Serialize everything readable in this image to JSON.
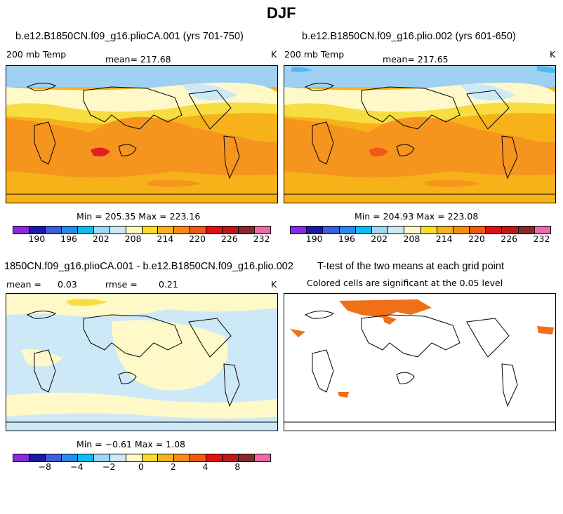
{
  "title": "DJF",
  "panels": [
    {
      "title": "b.e12.B1850CN.f09_g16.plioCA.001 (yrs 701-750)",
      "field": "200 mb Temp",
      "mean": "mean= 217.68",
      "units": "K",
      "minmax": "Min = 205.35 Max = 223.16"
    },
    {
      "title": "b.e12.B1850CN.f09_g16.plio.002 (yrs 601-650)",
      "field": "200 mb Temp",
      "mean": "mean= 217.65",
      "units": "K",
      "minmax": "Min = 204.93 Max = 223.08"
    },
    {
      "title": "1850CN.f09_g16.plioCA.001 - b.e12.B1850CN.f09_g16.plio.002",
      "mean_label": "mean =",
      "mean_value": "0.03",
      "rmse_label": "rmse =",
      "rmse_value": "0.21",
      "units": "K",
      "minmax": "Min =  −0.61 Max =   1.08"
    },
    {
      "title": "T-test of the two means at each grid point",
      "subtitle": "Colored cells are significant at the 0.05 level"
    }
  ],
  "colorbar_abs": {
    "colors": [
      "#8a2be2",
      "#1a1aa8",
      "#3f5fd8",
      "#2a8ae8",
      "#10bdf0",
      "#9fd8f5",
      "#cde9f8",
      "#fff8c8",
      "#f8dd2c",
      "#f5b41e",
      "#f58c14",
      "#f05a14",
      "#e01010",
      "#c01818",
      "#8b2a2a",
      "#ef6aa8"
    ],
    "ticks": [
      "190",
      "196",
      "202",
      "208",
      "214",
      "220",
      "226",
      "232"
    ]
  },
  "colorbar_diff": {
    "colors": [
      "#8a2be2",
      "#1a1aa8",
      "#3f5fd8",
      "#2a8ae8",
      "#10bdf0",
      "#9fd8f5",
      "#cde9f8",
      "#fff8c8",
      "#f8dd2c",
      "#f5b41e",
      "#f58c14",
      "#f05a14",
      "#e01010",
      "#c01818",
      "#8b2a2a",
      "#ef6aa8"
    ],
    "ticks": [
      "−8",
      "−4",
      "−2",
      "0",
      "2",
      "4",
      "8"
    ]
  },
  "map_colors": {
    "dark_orange": "#f5951e",
    "orange": "#f7b21a",
    "yellow": "#f8dd40",
    "cream": "#fff8c8",
    "pale_blue": "#cde9f8",
    "light_blue": "#9fd0f2",
    "blue": "#52b8ec",
    "red": "#e02020",
    "signif": "#f07018"
  }
}
